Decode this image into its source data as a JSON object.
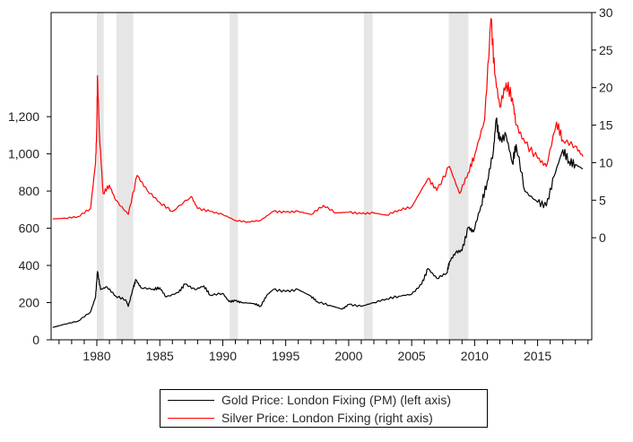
{
  "chart_data": {
    "type": "line",
    "title": "",
    "xlabel": "",
    "xlim": [
      1976.37,
      2019.3
    ],
    "x_ticks": [
      1980,
      1985,
      1990,
      1995,
      2000,
      2005,
      2010,
      2015
    ],
    "x_tick_labels": [
      "1980",
      "1985",
      "1990",
      "1995",
      "2000",
      "2005",
      "2010",
      "2015"
    ],
    "left_axis": {
      "ylim": [
        0,
        1760
      ],
      "ticks": [
        0,
        200,
        400,
        600,
        800,
        1000,
        1200
      ],
      "tick_labels": [
        "0",
        "200",
        "400",
        "600",
        "800",
        "1,000",
        "1,200"
      ]
    },
    "right_axis": {
      "ylim": [
        -13.6,
        30
      ],
      "ticks": [
        0,
        5,
        10,
        15,
        20,
        25,
        30
      ],
      "tick_labels": [
        "0",
        "5",
        "10",
        "15",
        "20",
        "25",
        "30"
      ]
    },
    "recessions": [
      [
        1980.0,
        1980.55
      ],
      [
        1981.55,
        1982.9
      ],
      [
        1990.55,
        1991.2
      ],
      [
        2001.2,
        2001.9
      ],
      [
        2007.95,
        2009.5
      ]
    ],
    "grid": false,
    "legend_placement": "bottom",
    "series": [
      {
        "name": "Gold Price: London Fixing (PM) (left axis)",
        "axis": "left",
        "color": "#000000",
        "x": [
          1976.5,
          1977.5,
          1978.5,
          1979.5,
          1979.9,
          1980.05,
          1980.3,
          1980.8,
          1981.5,
          1982.3,
          1982.5,
          1982.9,
          1983.1,
          1983.5,
          1984.5,
          1985,
          1985.5,
          1986.5,
          1987,
          1987.8,
          1988.5,
          1989,
          1990,
          1990.5,
          1991,
          1991.5,
          1992.5,
          1993,
          1993.5,
          1994,
          1995,
          1996,
          1997,
          1997.5,
          1998.5,
          1999.5,
          2000,
          2001,
          2002,
          2003,
          2004,
          2005,
          2005.8,
          2006.3,
          2007,
          2007.8,
          2008,
          2008.5,
          2009,
          2009.5,
          2009.9,
          2010.5,
          2011,
          2011.5,
          2011.7,
          2012,
          2012.5,
          2013,
          2013.3,
          2014,
          2015,
          2015.7,
          2016.3,
          2017,
          2017.5,
          2018,
          2018.6
        ],
        "y": [
          66,
          85,
          100,
          150,
          230,
          367,
          270,
          285,
          235,
          215,
          180,
          280,
          323,
          280,
          272,
          280,
          230,
          255,
          300,
          270,
          290,
          240,
          250,
          205,
          210,
          200,
          195,
          180,
          240,
          270,
          260,
          270,
          235,
          205,
          185,
          165,
          190,
          180,
          200,
          220,
          235,
          245,
          300,
          383,
          330,
          360,
          420,
          470,
          480,
          604,
          580,
          720,
          850,
          1020,
          1183,
          1070,
          1100,
          950,
          1050,
          797,
          740,
          720,
          878,
          1022,
          960,
          942,
          920
        ]
      },
      {
        "name": "Silver Price: London Fixing (right axis)",
        "axis": "right",
        "color": "#ff0000",
        "x": [
          1976.5,
          1977.5,
          1978.5,
          1979.5,
          1979.9,
          1980.0,
          1980.05,
          1980.2,
          1980.5,
          1981,
          1981.5,
          1982.5,
          1983.2,
          1984,
          1985,
          1986,
          1987.5,
          1988,
          1989,
          1990,
          1991,
          1992,
          1993,
          1994,
          1995,
          1996,
          1997,
          1998,
          1999,
          2000,
          2001,
          2002,
          2003,
          2004,
          2005,
          2006.3,
          2007,
          2008,
          2008.8,
          2009.5,
          2010,
          2010.8,
          2011.3,
          2011.6,
          2012,
          2012.5,
          2013,
          2013.3,
          2014,
          2015,
          2015.7,
          2016.5,
          2017,
          2018,
          2018.6
        ],
        "y": [
          2.5,
          2.6,
          2.8,
          3.9,
          10,
          14.6,
          21.6,
          14,
          5.9,
          7,
          5,
          3.1,
          8.3,
          6.3,
          4.7,
          3.5,
          5.5,
          3.9,
          3.5,
          3.1,
          2.3,
          2.1,
          2.3,
          3.5,
          3.4,
          3.5,
          3.1,
          4.3,
          3.3,
          3.4,
          3.2,
          3.3,
          3.0,
          3.7,
          4.1,
          7.9,
          6.3,
          9.5,
          5.9,
          8.7,
          11,
          15.8,
          29.2,
          21.8,
          17.4,
          20.6,
          18.6,
          15,
          12.6,
          10.6,
          9.5,
          15.4,
          13,
          12.2,
          10.8
        ]
      }
    ]
  },
  "legend": {
    "items": [
      {
        "label": "Gold Price: London Fixing (PM) (left axis)",
        "color": "#000000"
      },
      {
        "label": "Silver Price: London Fixing (right axis)",
        "color": "#ff0000"
      }
    ]
  }
}
